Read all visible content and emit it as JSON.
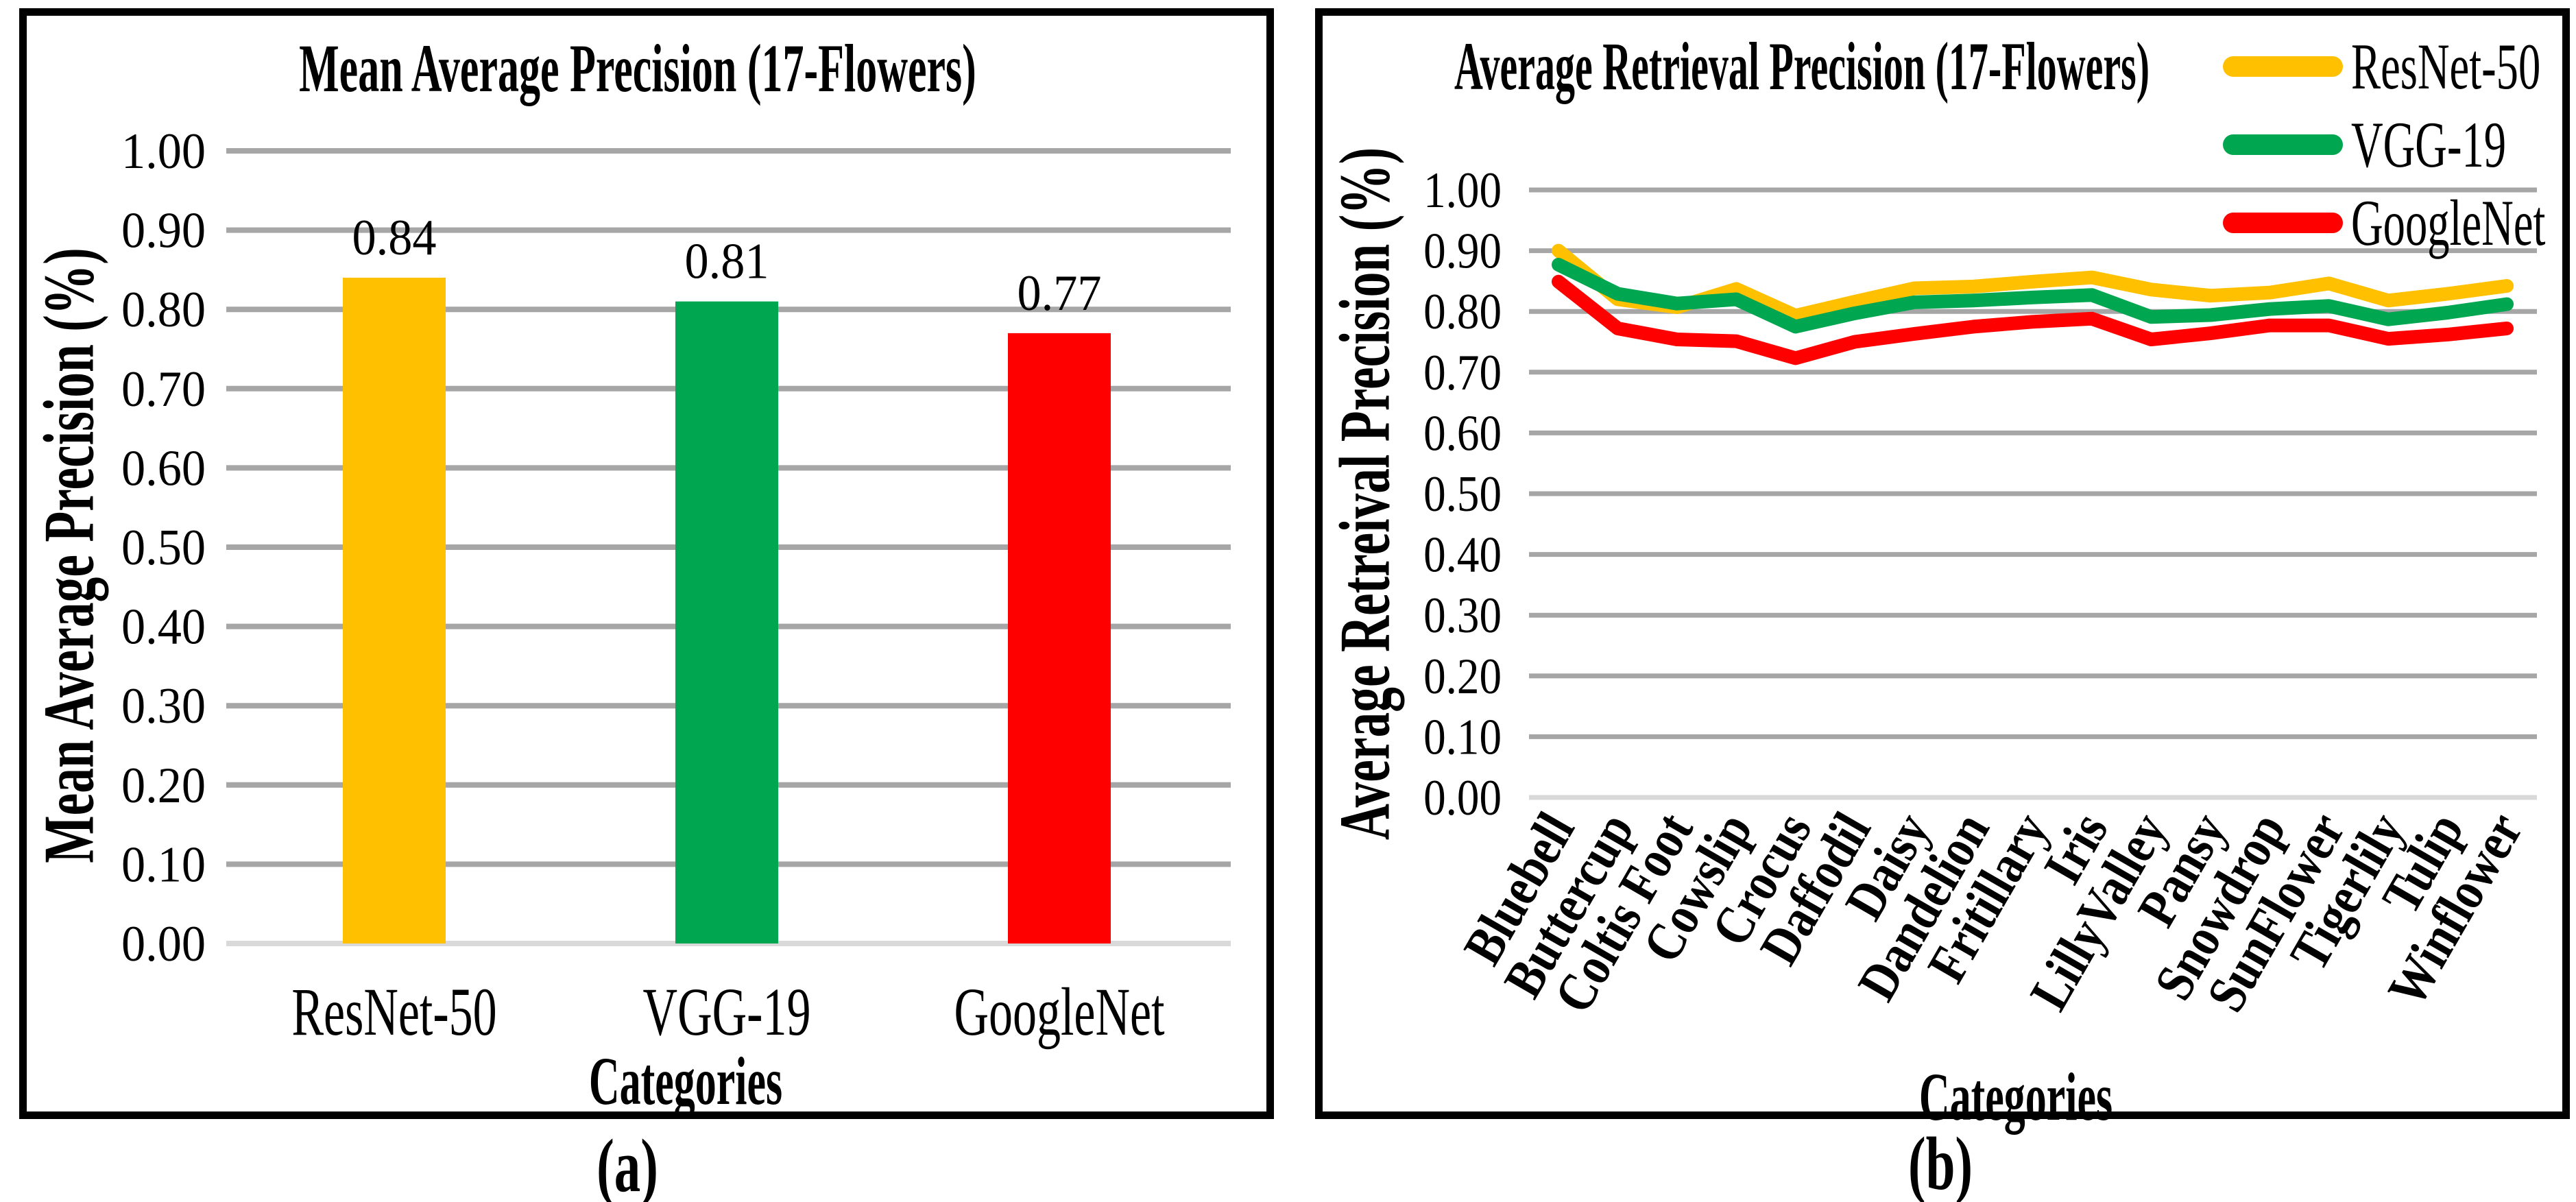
{
  "captions": {
    "a": "(a)",
    "b": "(b)"
  },
  "colors": {
    "grid": "#A6A6A6",
    "baseline": "#D9D9D9",
    "border": "#000000",
    "background": "#FFFFFF",
    "resnet50": "#FFC000",
    "vgg19": "#00A650",
    "googlenet": "#FF0000"
  },
  "chart_data": [
    {
      "type": "bar",
      "title": "Mean Average Precision (17-Flowers)",
      "y_label": "Mean Average Precision (%)",
      "x_label": "Categories",
      "ylim": [
        0,
        1
      ],
      "grid": true,
      "y_ticks": [
        "0.00",
        "0.10",
        "0.20",
        "0.30",
        "0.40",
        "0.50",
        "0.60",
        "0.70",
        "0.80",
        "0.90",
        "1.00"
      ],
      "categories": [
        "ResNet-50",
        "VGG-19",
        "GoogleNet"
      ],
      "values": [
        0.84,
        0.81,
        0.77
      ],
      "data_labels": [
        "0.84",
        "0.81",
        "0.77"
      ],
      "bar_colors": [
        "#FFC000",
        "#00A650",
        "#FF0000"
      ]
    },
    {
      "type": "line",
      "title": "Average Retrieval Precision (17-Flowers)",
      "y_label": "Average Retreival Precision (%)",
      "x_label": "Categories",
      "ylim": [
        0,
        1
      ],
      "grid": true,
      "legend_position": "top-right",
      "y_ticks": [
        "0.00",
        "0.10",
        "0.20",
        "0.30",
        "0.40",
        "0.50",
        "0.60",
        "0.70",
        "0.80",
        "0.90",
        "1.00"
      ],
      "categories": [
        "Bluebell",
        "Buttercup",
        "Coltis Foot",
        "Cowslip",
        "Crocus",
        "Daffodil",
        "Daisy",
        "Dandelion",
        "Fritillary",
        "Iris",
        "LillyValley",
        "Pansy",
        "Snowdrop",
        "SunFlower",
        "Tigerlily",
        "Tulip",
        "Winflower"
      ],
      "series": [
        {
          "name": "ResNet-50",
          "color": "#FFC000",
          "values": [
            0.9,
            0.82,
            0.807,
            0.837,
            0.793,
            0.816,
            0.838,
            0.841,
            0.849,
            0.856,
            0.836,
            0.826,
            0.831,
            0.846,
            0.818,
            0.829,
            0.842
          ]
        },
        {
          "name": "VGG-19",
          "color": "#00A650",
          "values": [
            0.877,
            0.829,
            0.813,
            0.82,
            0.775,
            0.797,
            0.815,
            0.818,
            0.823,
            0.827,
            0.791,
            0.794,
            0.804,
            0.809,
            0.787,
            0.798,
            0.812
          ]
        },
        {
          "name": "GoogleNet",
          "color": "#FF0000",
          "values": [
            0.849,
            0.772,
            0.754,
            0.751,
            0.723,
            0.75,
            0.763,
            0.775,
            0.783,
            0.788,
            0.754,
            0.764,
            0.777,
            0.777,
            0.755,
            0.762,
            0.772
          ]
        }
      ]
    }
  ]
}
